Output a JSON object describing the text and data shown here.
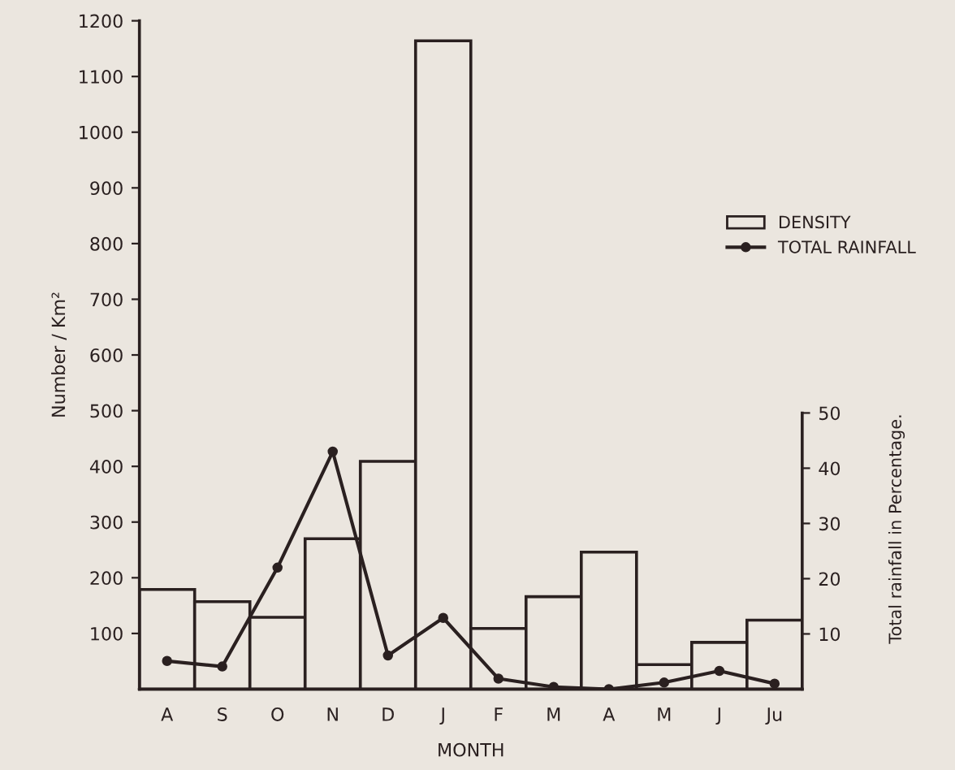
{
  "chart_data": {
    "type": "bar",
    "xlabel": "MONTH",
    "ylabel": "Number / Km²",
    "y2label": "Total rainfall in Percentage.",
    "categories": [
      "A",
      "S",
      "O",
      "N",
      "D",
      "J",
      "F",
      "M",
      "A",
      "M",
      "J",
      "Ju"
    ],
    "series": [
      {
        "name": "DENSITY",
        "color": "#ebe6df",
        "values": [
          179,
          157,
          129,
          270,
          409,
          1164,
          109,
          166,
          246,
          44,
          84,
          124
        ]
      },
      {
        "name": "TOTAL RAINFALL",
        "type": "line",
        "axis": "y2",
        "color": "#2a2020",
        "values": [
          5.1,
          4.1,
          22,
          43,
          6.1,
          12.9,
          1.9,
          0.4,
          0,
          1.2,
          3.3,
          1.0
        ]
      }
    ],
    "ylim": [
      0,
      1200
    ],
    "yticks": [
      100,
      200,
      300,
      400,
      500,
      600,
      700,
      800,
      900,
      1000,
      1100,
      1200
    ],
    "y2lim": [
      0,
      121
    ],
    "y2ticks": [
      10,
      20,
      30,
      40,
      50
    ],
    "legend": "top right",
    "marker": "circle",
    "line_style": "solid",
    "grid": false
  }
}
